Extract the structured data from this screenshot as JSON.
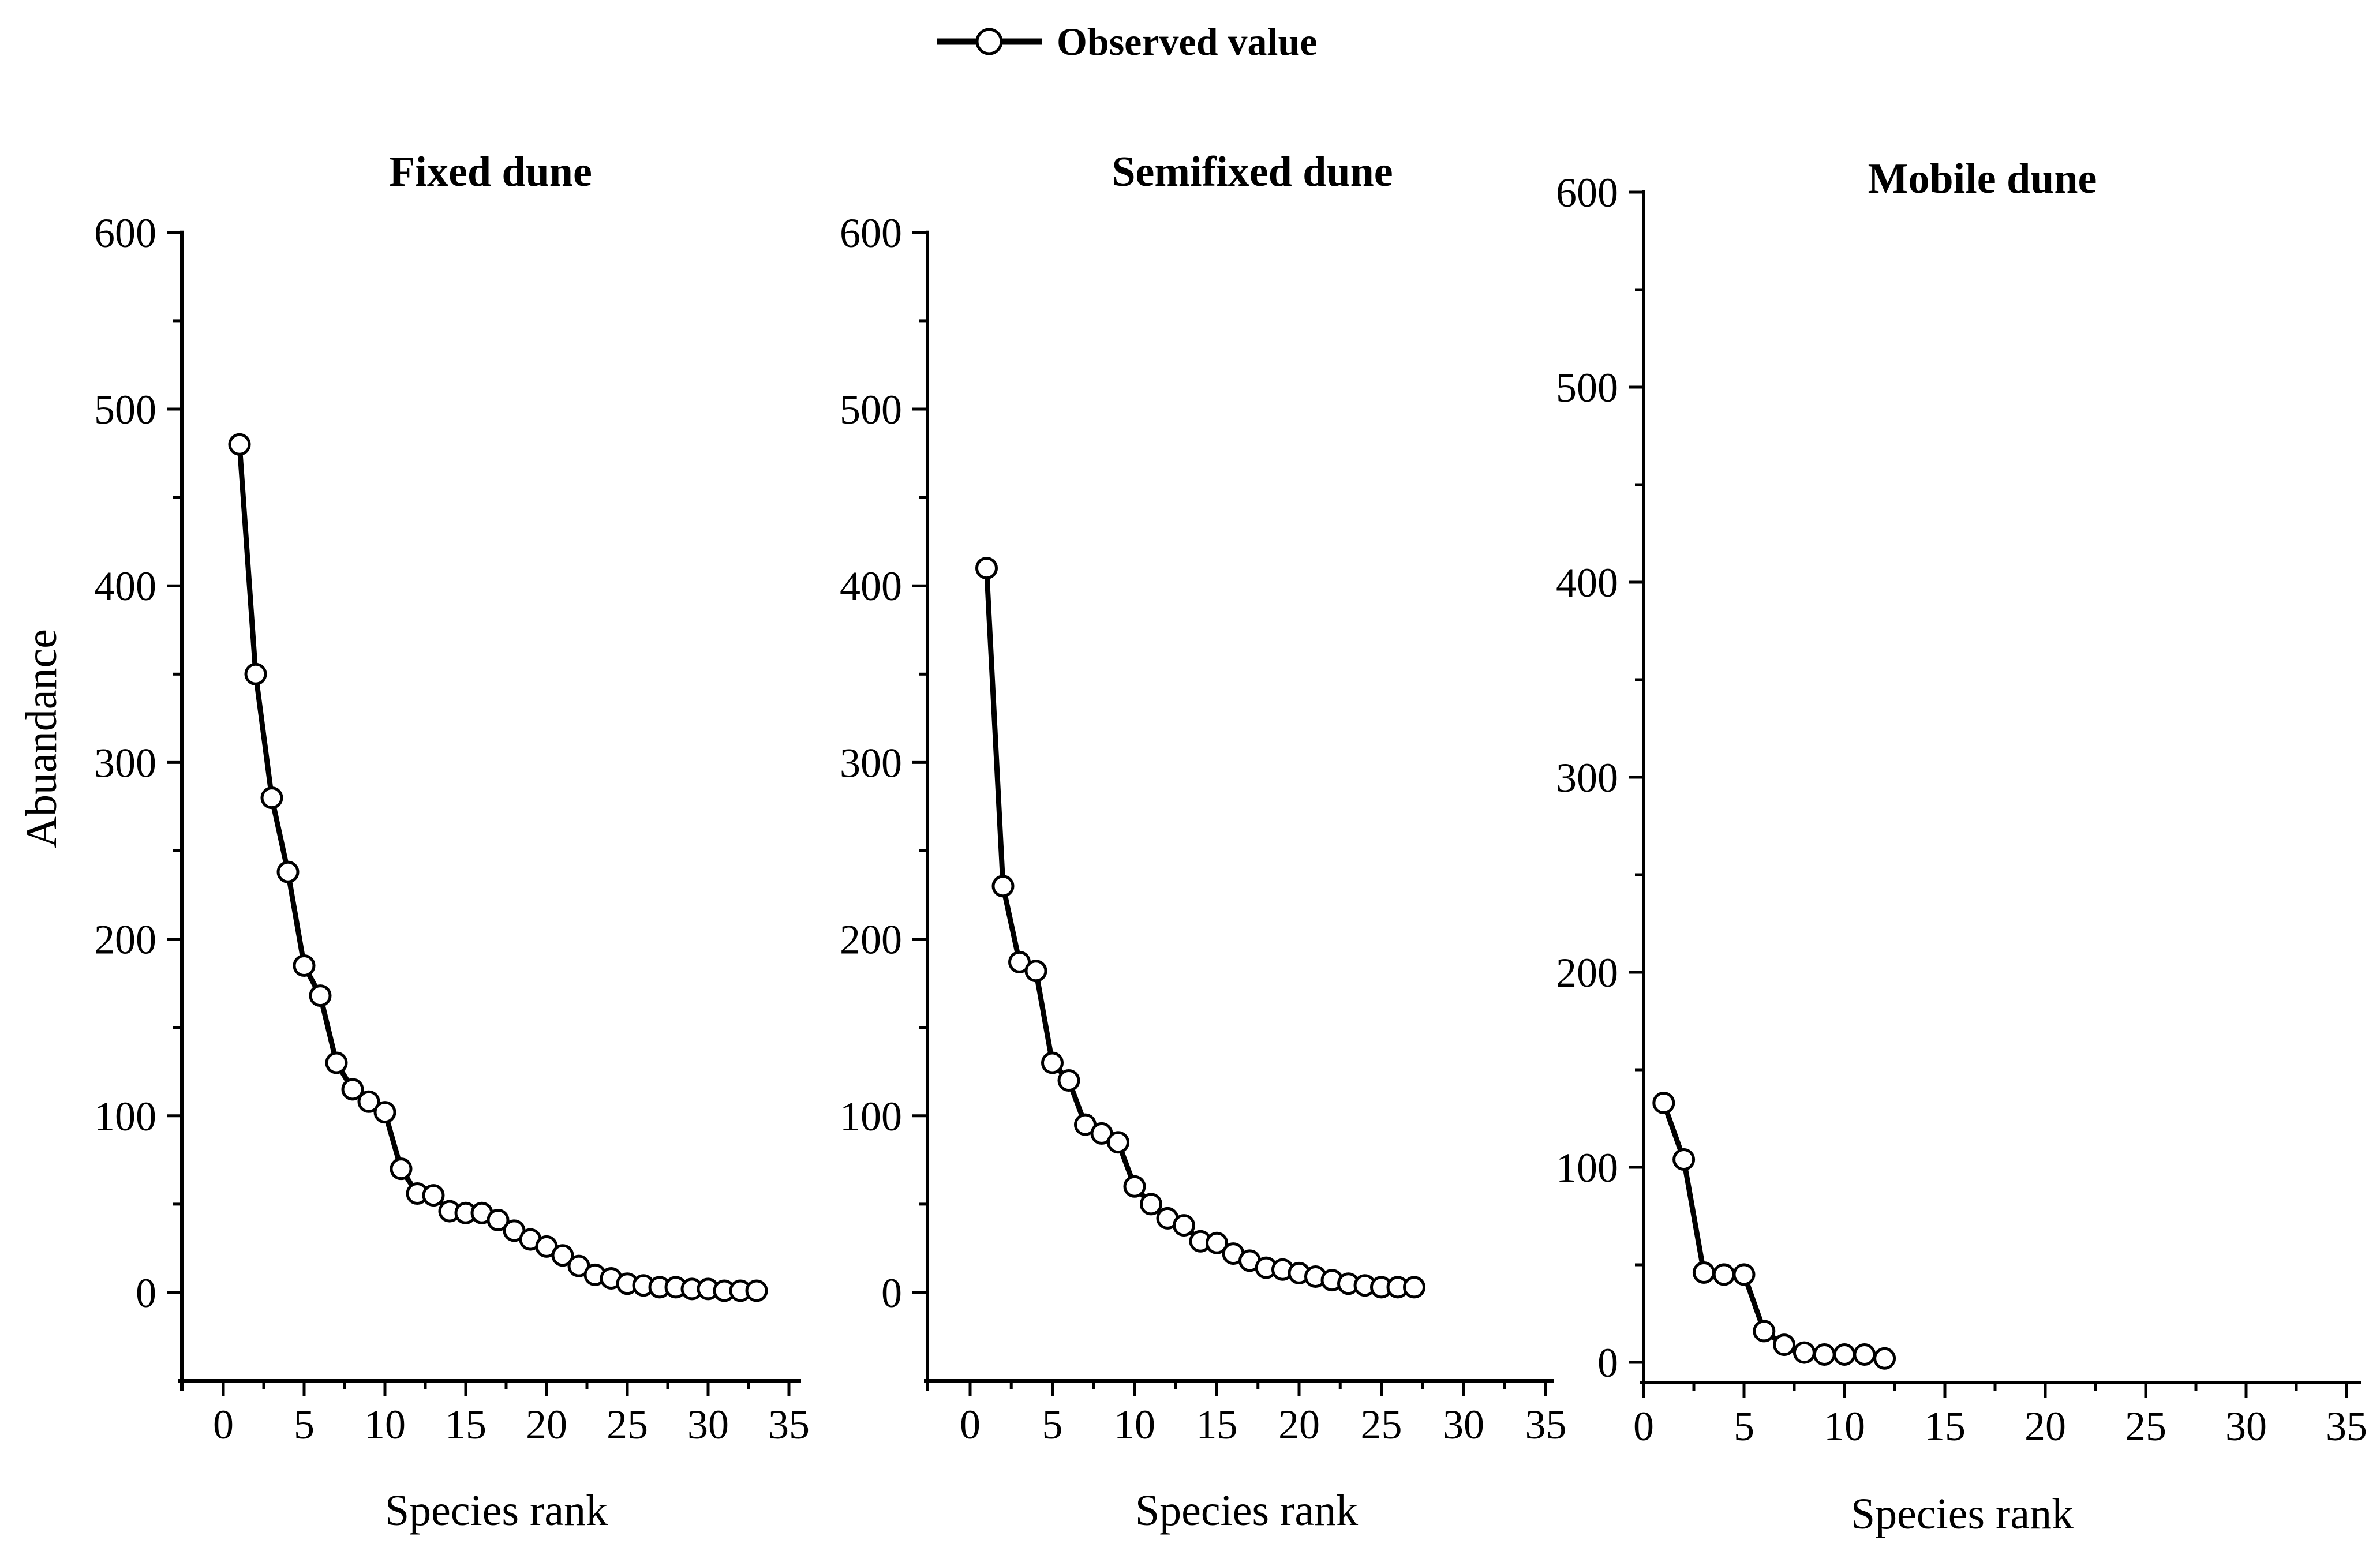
{
  "figure": {
    "background": "#ffffff",
    "ink_color": "#000000"
  },
  "legend": {
    "label": "Observed value",
    "symbol": "line-with-open-circle"
  },
  "chart_data": [
    {
      "type": "line",
      "title": "Fixed dune",
      "xlabel": "Species rank",
      "ylabel": "Abuandance",
      "xlim": [
        0,
        35
      ],
      "ylim": [
        0,
        600
      ],
      "x_ticks": [
        0,
        5,
        10,
        15,
        20,
        25,
        30,
        35
      ],
      "y_ticks": [
        0,
        100,
        200,
        300,
        400,
        500,
        600
      ],
      "x_minor_step": 2.5,
      "y_minor_step": 50,
      "grid": false,
      "x_start_rank": 1,
      "series": [
        {
          "name": "Observed value",
          "marker": "open-circle",
          "values": [
            480,
            350,
            280,
            238,
            185,
            168,
            130,
            115,
            108,
            102,
            70,
            56,
            55,
            46,
            45,
            45,
            41,
            35,
            30,
            26,
            21,
            15,
            10,
            8,
            5,
            4,
            3,
            3,
            2,
            2,
            1,
            1,
            1
          ]
        }
      ]
    },
    {
      "type": "line",
      "title": "Semifixed dune",
      "xlabel": "Species rank",
      "ylabel": "Abuandance",
      "xlim": [
        0,
        35
      ],
      "ylim": [
        0,
        600
      ],
      "x_ticks": [
        0,
        5,
        10,
        15,
        20,
        25,
        30,
        35
      ],
      "y_ticks": [
        0,
        100,
        200,
        300,
        400,
        500,
        600
      ],
      "x_minor_step": 2.5,
      "y_minor_step": 50,
      "grid": false,
      "x_start_rank": 1,
      "series": [
        {
          "name": "Observed value",
          "marker": "open-circle",
          "values": [
            410,
            230,
            187,
            182,
            130,
            120,
            95,
            90,
            85,
            60,
            50,
            42,
            38,
            29,
            28,
            22,
            18,
            14,
            13,
            11,
            9,
            7,
            5,
            4,
            3,
            3,
            3
          ]
        }
      ]
    },
    {
      "type": "line",
      "title": "Mobile dune",
      "xlabel": "Species rank",
      "ylabel": "Abuandance",
      "xlim": [
        0,
        35
      ],
      "ylim": [
        0,
        600
      ],
      "x_ticks": [
        0,
        5,
        10,
        15,
        20,
        25,
        30,
        35
      ],
      "y_ticks": [
        0,
        100,
        200,
        300,
        400,
        500,
        600
      ],
      "x_minor_step": 2.5,
      "y_minor_step": 50,
      "grid": false,
      "x_start_rank": 1,
      "series": [
        {
          "name": "Observed value",
          "marker": "open-circle",
          "values": [
            133,
            104,
            46,
            45,
            45,
            16,
            9,
            5,
            4,
            4,
            4,
            2
          ]
        }
      ]
    }
  ]
}
